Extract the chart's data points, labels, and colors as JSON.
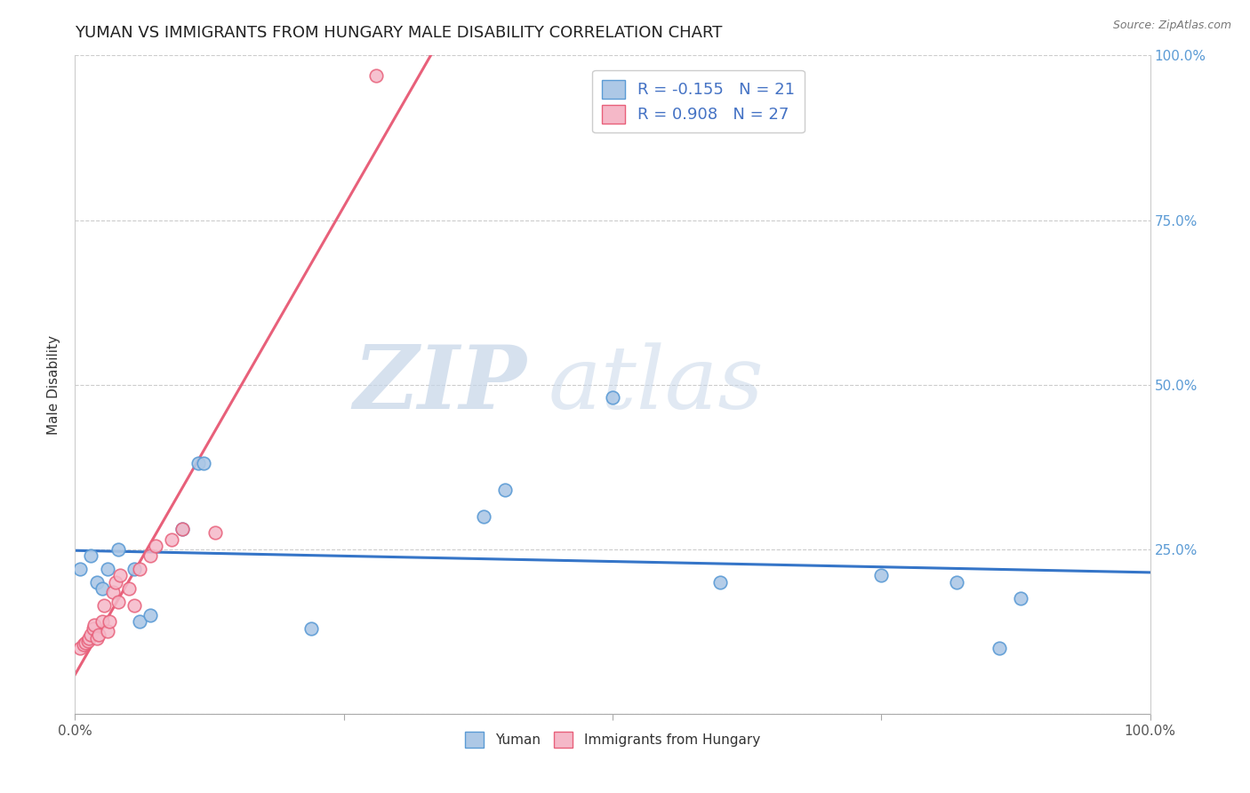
{
  "title": "YUMAN VS IMMIGRANTS FROM HUNGARY MALE DISABILITY CORRELATION CHART",
  "source_text": "Source: ZipAtlas.com",
  "ylabel": "Male Disability",
  "xlabel": "",
  "xlim": [
    0,
    1
  ],
  "ylim": [
    0,
    1
  ],
  "xtick_vals": [
    0,
    0.25,
    0.5,
    0.75,
    1.0
  ],
  "xtick_labels_ends": [
    "0.0%",
    "100.0%"
  ],
  "ytick_vals": [
    0,
    0.25,
    0.5,
    0.75,
    1.0
  ],
  "right_ytick_labels": [
    "100.0%",
    "75.0%",
    "50.0%",
    "25.0%"
  ],
  "right_ytick_positions": [
    1.0,
    0.75,
    0.5,
    0.25
  ],
  "yuman_color": "#adc8e6",
  "hungary_color": "#f5b8c8",
  "yuman_edge_color": "#5b9bd5",
  "hungary_edge_color": "#e8607a",
  "trend_blue": "#3575c8",
  "trend_pink": "#e8607a",
  "R_yuman": -0.155,
  "N_yuman": 21,
  "R_hungary": 0.908,
  "N_hungary": 27,
  "watermark_zip": "ZIP",
  "watermark_atlas": "atlas",
  "legend_label1": "Yuman",
  "legend_label2": "Immigrants from Hungary",
  "yuman_x": [
    0.005,
    0.015,
    0.02,
    0.025,
    0.03,
    0.04,
    0.055,
    0.06,
    0.07,
    0.1,
    0.115,
    0.12,
    0.22,
    0.38,
    0.4,
    0.5,
    0.6,
    0.75,
    0.82,
    0.86,
    0.88
  ],
  "yuman_y": [
    0.22,
    0.24,
    0.2,
    0.19,
    0.22,
    0.25,
    0.22,
    0.14,
    0.15,
    0.28,
    0.38,
    0.38,
    0.13,
    0.3,
    0.34,
    0.48,
    0.2,
    0.21,
    0.2,
    0.1,
    0.175
  ],
  "hungary_x": [
    0.005,
    0.008,
    0.01,
    0.012,
    0.013,
    0.015,
    0.017,
    0.018,
    0.02,
    0.022,
    0.025,
    0.027,
    0.03,
    0.032,
    0.035,
    0.038,
    0.04,
    0.042,
    0.05,
    0.055,
    0.06,
    0.07,
    0.075,
    0.09,
    0.1,
    0.13,
    0.28
  ],
  "hungary_y": [
    0.1,
    0.105,
    0.108,
    0.11,
    0.115,
    0.12,
    0.13,
    0.135,
    0.115,
    0.12,
    0.14,
    0.165,
    0.125,
    0.14,
    0.185,
    0.2,
    0.17,
    0.21,
    0.19,
    0.165,
    0.22,
    0.24,
    0.255,
    0.265,
    0.28,
    0.275,
    0.97
  ],
  "title_fontsize": 13,
  "axis_label_fontsize": 11,
  "tick_fontsize": 11,
  "marker_size": 110
}
